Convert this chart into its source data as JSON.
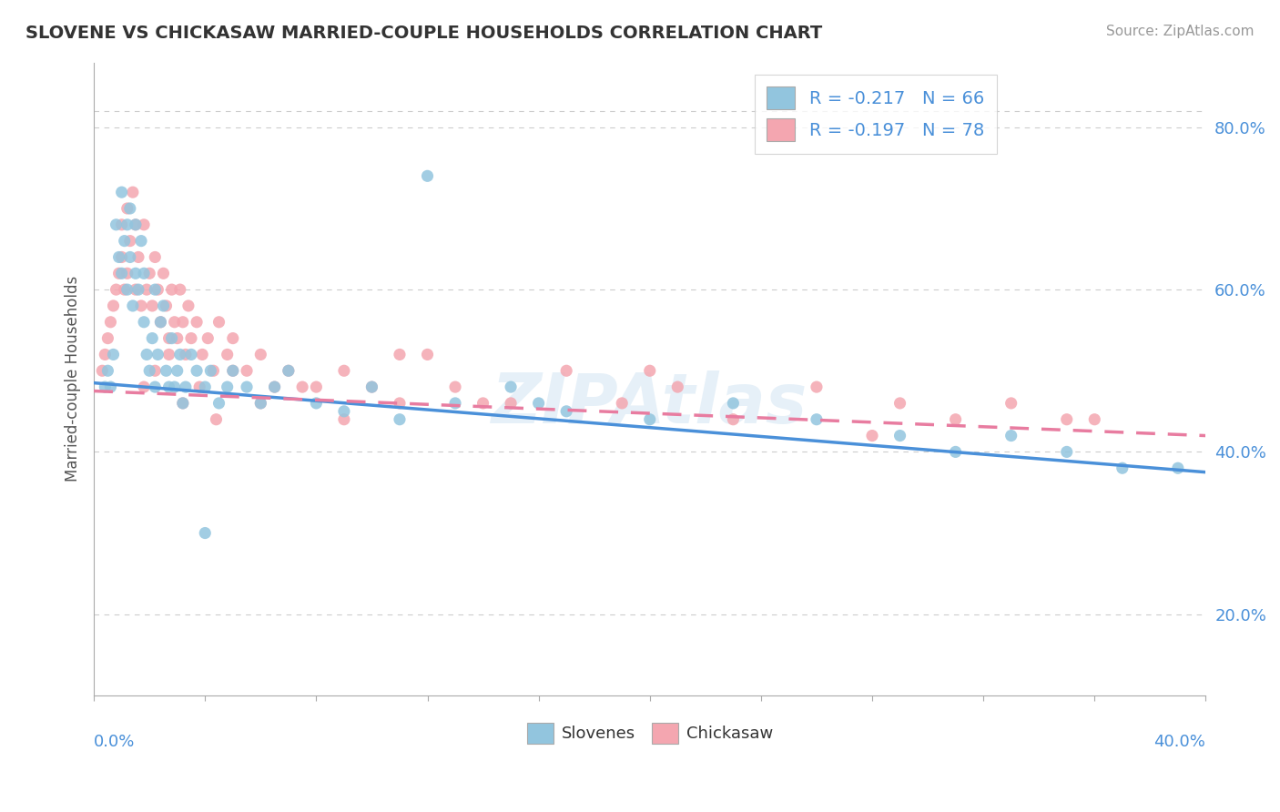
{
  "title": "SLOVENE VS CHICKASAW MARRIED-COUPLE HOUSEHOLDS CORRELATION CHART",
  "source_text": "Source: ZipAtlas.com",
  "ylabel": "Married-couple Households",
  "xmin": 0.0,
  "xmax": 0.4,
  "ymin": 0.1,
  "ymax": 0.88,
  "slovene_color": "#92C5DE",
  "chickasaw_color": "#F4A6B0",
  "slovene_line_color": "#4A90D9",
  "chickasaw_line_color": "#E87CA0",
  "slovene_R": -0.217,
  "slovene_N": 66,
  "chickasaw_R": -0.197,
  "chickasaw_N": 78,
  "watermark": "ZIPAtlas",
  "legend_label_1": "Slovenes",
  "legend_label_2": "Chickasaw",
  "slovene_trend_x0": 0.0,
  "slovene_trend_y0": 0.485,
  "slovene_trend_x1": 0.4,
  "slovene_trend_y1": 0.375,
  "chickasaw_trend_x0": 0.0,
  "chickasaw_trend_y0": 0.475,
  "chickasaw_trend_x1": 0.4,
  "chickasaw_trend_y1": 0.42,
  "slovene_x": [
    0.004,
    0.005,
    0.006,
    0.007,
    0.008,
    0.009,
    0.01,
    0.01,
    0.011,
    0.012,
    0.012,
    0.013,
    0.013,
    0.014,
    0.015,
    0.015,
    0.016,
    0.017,
    0.018,
    0.018,
    0.019,
    0.02,
    0.021,
    0.022,
    0.022,
    0.023,
    0.024,
    0.025,
    0.026,
    0.027,
    0.028,
    0.029,
    0.03,
    0.031,
    0.032,
    0.033,
    0.035,
    0.037,
    0.04,
    0.042,
    0.045,
    0.048,
    0.05,
    0.055,
    0.06,
    0.065,
    0.07,
    0.08,
    0.09,
    0.1,
    0.11,
    0.13,
    0.15,
    0.17,
    0.2,
    0.23,
    0.26,
    0.29,
    0.31,
    0.33,
    0.35,
    0.37,
    0.39,
    0.12,
    0.16,
    0.04
  ],
  "slovene_y": [
    0.48,
    0.5,
    0.48,
    0.52,
    0.68,
    0.64,
    0.72,
    0.62,
    0.66,
    0.6,
    0.68,
    0.64,
    0.7,
    0.58,
    0.62,
    0.68,
    0.6,
    0.66,
    0.62,
    0.56,
    0.52,
    0.5,
    0.54,
    0.6,
    0.48,
    0.52,
    0.56,
    0.58,
    0.5,
    0.48,
    0.54,
    0.48,
    0.5,
    0.52,
    0.46,
    0.48,
    0.52,
    0.5,
    0.48,
    0.5,
    0.46,
    0.48,
    0.5,
    0.48,
    0.46,
    0.48,
    0.5,
    0.46,
    0.45,
    0.48,
    0.44,
    0.46,
    0.48,
    0.45,
    0.44,
    0.46,
    0.44,
    0.42,
    0.4,
    0.42,
    0.4,
    0.38,
    0.38,
    0.74,
    0.46,
    0.3
  ],
  "chickasaw_x": [
    0.003,
    0.004,
    0.005,
    0.006,
    0.007,
    0.008,
    0.009,
    0.01,
    0.01,
    0.011,
    0.012,
    0.012,
    0.013,
    0.014,
    0.015,
    0.015,
    0.016,
    0.017,
    0.018,
    0.019,
    0.02,
    0.021,
    0.022,
    0.023,
    0.024,
    0.025,
    0.026,
    0.027,
    0.028,
    0.029,
    0.03,
    0.031,
    0.032,
    0.033,
    0.034,
    0.035,
    0.037,
    0.039,
    0.041,
    0.043,
    0.045,
    0.048,
    0.05,
    0.055,
    0.06,
    0.065,
    0.07,
    0.08,
    0.09,
    0.1,
    0.11,
    0.12,
    0.13,
    0.15,
    0.17,
    0.19,
    0.21,
    0.23,
    0.26,
    0.29,
    0.31,
    0.33,
    0.35,
    0.018,
    0.022,
    0.027,
    0.032,
    0.038,
    0.044,
    0.05,
    0.06,
    0.075,
    0.09,
    0.11,
    0.14,
    0.2,
    0.28,
    0.36
  ],
  "chickasaw_y": [
    0.5,
    0.52,
    0.54,
    0.56,
    0.58,
    0.6,
    0.62,
    0.68,
    0.64,
    0.6,
    0.62,
    0.7,
    0.66,
    0.72,
    0.68,
    0.6,
    0.64,
    0.58,
    0.68,
    0.6,
    0.62,
    0.58,
    0.64,
    0.6,
    0.56,
    0.62,
    0.58,
    0.54,
    0.6,
    0.56,
    0.54,
    0.6,
    0.56,
    0.52,
    0.58,
    0.54,
    0.56,
    0.52,
    0.54,
    0.5,
    0.56,
    0.52,
    0.54,
    0.5,
    0.52,
    0.48,
    0.5,
    0.48,
    0.5,
    0.48,
    0.46,
    0.52,
    0.48,
    0.46,
    0.5,
    0.46,
    0.48,
    0.44,
    0.48,
    0.46,
    0.44,
    0.46,
    0.44,
    0.48,
    0.5,
    0.52,
    0.46,
    0.48,
    0.44,
    0.5,
    0.46,
    0.48,
    0.44,
    0.52,
    0.46,
    0.5,
    0.42,
    0.44
  ]
}
